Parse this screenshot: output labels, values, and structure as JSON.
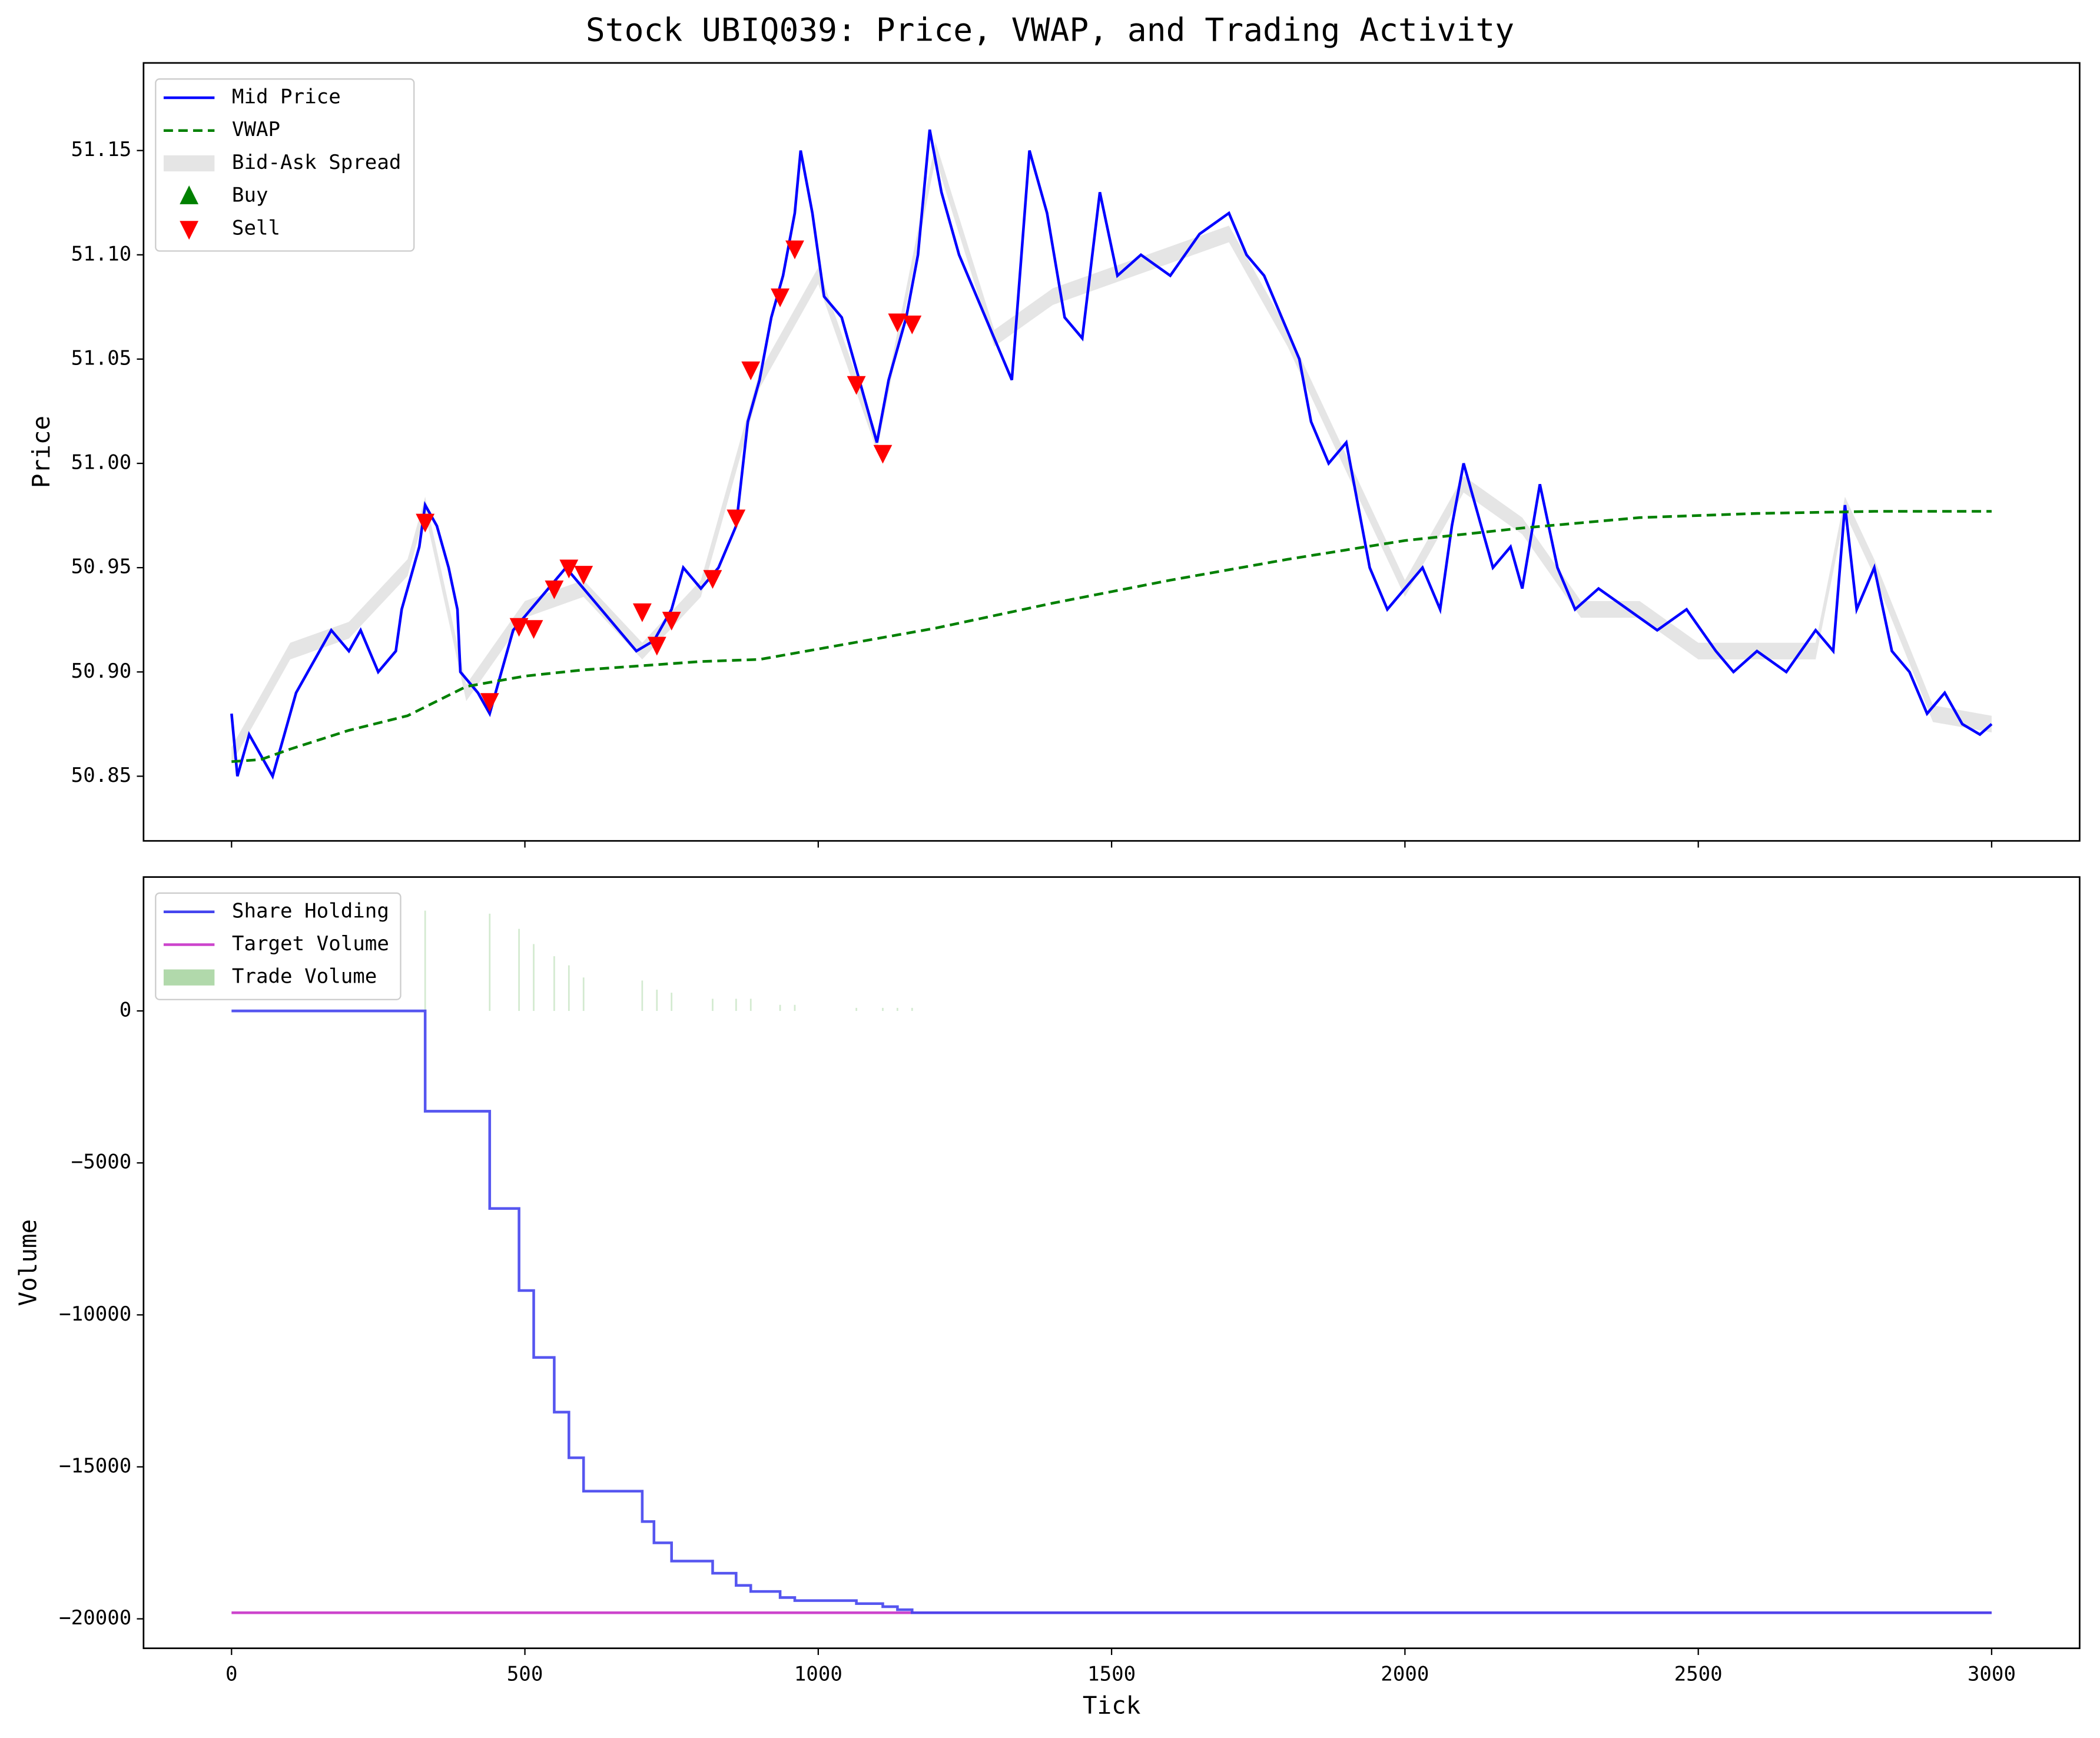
{
  "chart_data": [
    {
      "type": "line",
      "title": "Stock UBIQ039: Price, VWAP, and Trading Activity",
      "ylabel": "Price",
      "xlim": [
        -150,
        3150
      ],
      "xticks": [
        0,
        500,
        1000,
        1500,
        2000,
        2500,
        3000
      ],
      "ylim": [
        50.819,
        51.192
      ],
      "yticks": [
        50.85,
        {
          "value": 50.9,
          "label": "50.90"
        },
        50.95,
        {
          "value": 51.0,
          "label": "51.00"
        },
        51.05,
        {
          "value": 51.1,
          "label": "51.10"
        },
        51.15
      ],
      "legend": "upper left",
      "series": [
        {
          "name": "Mid Price",
          "style": "line",
          "color": "#0000ff",
          "x": [
            0,
            10,
            30,
            50,
            70,
            90,
            110,
            130,
            150,
            170,
            200,
            220,
            250,
            280,
            290,
            310,
            320,
            330,
            350,
            370,
            385,
            390,
            420,
            440,
            460,
            480,
            510,
            540,
            570,
            600,
            630,
            660,
            690,
            720,
            750,
            770,
            800,
            830,
            860,
            880,
            900,
            920,
            940,
            960,
            970,
            990,
            1010,
            1040,
            1070,
            1100,
            1120,
            1150,
            1170,
            1190,
            1210,
            1240,
            1270,
            1300,
            1330,
            1360,
            1390,
            1420,
            1450,
            1480,
            1510,
            1550,
            1600,
            1650,
            1700,
            1730,
            1760,
            1790,
            1820,
            1840,
            1870,
            1900,
            1920,
            1940,
            1970,
            2000,
            2030,
            2060,
            2080,
            2100,
            2120,
            2150,
            2180,
            2200,
            2230,
            2260,
            2290,
            2330,
            2380,
            2430,
            2480,
            2530,
            2560,
            2600,
            2650,
            2700,
            2730,
            2750,
            2770,
            2800,
            2830,
            2860,
            2890,
            2920,
            2950,
            2980,
            3000
          ],
          "values": [
            50.88,
            50.85,
            50.87,
            50.86,
            50.85,
            50.87,
            50.89,
            50.9,
            50.91,
            50.92,
            50.91,
            50.92,
            50.9,
            50.91,
            50.93,
            50.95,
            50.96,
            50.98,
            50.97,
            50.95,
            50.93,
            50.9,
            50.89,
            50.88,
            50.9,
            50.92,
            50.93,
            50.94,
            50.95,
            50.94,
            50.93,
            50.92,
            50.91,
            50.915,
            50.93,
            50.95,
            50.94,
            50.95,
            50.97,
            51.02,
            51.04,
            51.07,
            51.09,
            51.12,
            51.15,
            51.12,
            51.08,
            51.07,
            51.04,
            51.01,
            51.04,
            51.07,
            51.1,
            51.16,
            51.13,
            51.1,
            51.08,
            51.06,
            51.04,
            51.15,
            51.12,
            51.07,
            51.06,
            51.13,
            51.09,
            51.1,
            51.09,
            51.11,
            51.12,
            51.1,
            51.09,
            51.07,
            51.05,
            51.02,
            51.0,
            51.01,
            50.98,
            50.95,
            50.93,
            50.94,
            50.95,
            50.93,
            50.97,
            51.0,
            50.98,
            50.95,
            50.96,
            50.94,
            50.99,
            50.95,
            50.93,
            50.94,
            50.93,
            50.92,
            50.93,
            50.91,
            50.9,
            50.91,
            50.9,
            50.92,
            50.91,
            50.98,
            50.93,
            50.95,
            50.91,
            50.9,
            50.88,
            50.89,
            50.875,
            50.87,
            50.875
          ]
        },
        {
          "name": "VWAP",
          "style": "dashed",
          "color": "#008000",
          "x": [
            0,
            50,
            100,
            200,
            300,
            400,
            500,
            600,
            700,
            800,
            900,
            1000,
            1200,
            1400,
            1600,
            1800,
            2000,
            2200,
            2400,
            2600,
            2800,
            3000
          ],
          "values": [
            50.857,
            50.858,
            50.863,
            50.872,
            50.879,
            50.893,
            50.898,
            50.901,
            50.903,
            50.905,
            50.906,
            50.911,
            50.921,
            50.933,
            50.944,
            50.954,
            50.963,
            50.969,
            50.974,
            50.976,
            50.977,
            50.977
          ]
        },
        {
          "name": "Bid-Ask Spread",
          "style": "band",
          "color": "#d3d3d3",
          "x": [
            0,
            100,
            200,
            300,
            330,
            400,
            500,
            600,
            700,
            800,
            900,
            1000,
            1100,
            1200,
            1300,
            1400,
            1500,
            1600,
            1700,
            1800,
            1900,
            2000,
            2100,
            2200,
            2300,
            2400,
            2500,
            2600,
            2700,
            2750,
            2800,
            2900,
            3000
          ],
          "low": [
            50.856,
            50.906,
            50.916,
            50.946,
            50.976,
            50.886,
            50.926,
            50.936,
            50.906,
            50.936,
            51.036,
            51.086,
            51.006,
            51.146,
            51.056,
            51.076,
            51.086,
            51.096,
            51.106,
            51.056,
            50.996,
            50.936,
            50.986,
            50.966,
            50.926,
            50.926,
            50.906,
            50.906,
            50.906,
            50.976,
            50.946,
            50.876,
            50.871
          ],
          "high": [
            50.864,
            50.914,
            50.924,
            50.954,
            50.984,
            50.894,
            50.934,
            50.944,
            50.914,
            50.944,
            51.044,
            51.094,
            51.014,
            51.154,
            51.064,
            51.084,
            51.094,
            51.104,
            51.114,
            51.064,
            51.004,
            50.944,
            50.994,
            50.974,
            50.934,
            50.934,
            50.914,
            50.914,
            50.914,
            50.984,
            50.954,
            50.884,
            50.879
          ]
        },
        {
          "name": "Buy",
          "style": "marker-up",
          "color": "#008000",
          "x": [],
          "values": []
        },
        {
          "name": "Sell",
          "style": "marker-down",
          "color": "#ff0000",
          "x": [
            330,
            440,
            490,
            515,
            550,
            575,
            600,
            700,
            725,
            750,
            820,
            860,
            885,
            935,
            960,
            1065,
            1110,
            1135,
            1160
          ],
          "values": [
            50.972,
            50.886,
            50.922,
            50.921,
            50.94,
            50.95,
            50.947,
            50.929,
            50.913,
            50.925,
            50.945,
            50.974,
            51.045,
            51.08,
            51.103,
            51.038,
            51.005,
            51.068,
            51.067
          ]
        }
      ]
    },
    {
      "type": "line",
      "xlabel": "Tick",
      "ylabel": "Volume",
      "xlim": [
        -150,
        3150
      ],
      "xticks": [
        0,
        500,
        1000,
        1500,
        2000,
        2500,
        3000
      ],
      "ylim": [
        -20969,
        4405
      ],
      "yticks": [
        {
          "value": -20000,
          "label": "−20000"
        },
        {
          "value": -15000,
          "label": "−15000"
        },
        {
          "value": -10000,
          "label": "−10000"
        },
        {
          "value": -5000,
          "label": "−5000"
        },
        0
      ],
      "legend": "upper left",
      "series": [
        {
          "name": "Share Holding",
          "style": "step",
          "color": "#4444ee",
          "x": [
            0,
            330,
            440,
            490,
            515,
            550,
            575,
            600,
            700,
            720,
            750,
            820,
            860,
            885,
            935,
            960,
            1065,
            1110,
            1135,
            1160,
            3000
          ],
          "values": [
            0,
            -3300,
            -6500,
            -9200,
            -11400,
            -13200,
            -14700,
            -15800,
            -16800,
            -17500,
            -18100,
            -18500,
            -18900,
            -19100,
            -19300,
            -19400,
            -19500,
            -19600,
            -19700,
            -19800,
            -19800
          ]
        },
        {
          "name": "Target Volume",
          "style": "line",
          "color": "#cc44cc",
          "x": [
            0,
            3000
          ],
          "values": [
            -19800,
            -19800
          ]
        },
        {
          "name": "Trade Volume",
          "style": "bars",
          "color": "#a8d5a2",
          "x": [
            330,
            440,
            490,
            515,
            550,
            575,
            600,
            700,
            725,
            750,
            820,
            860,
            885,
            935,
            960,
            1065,
            1110,
            1135,
            1160
          ],
          "values": [
            3300,
            3200,
            2700,
            2200,
            1800,
            1500,
            1100,
            1000,
            700,
            600,
            400,
            400,
            400,
            200,
            200,
            100,
            100,
            100,
            100
          ]
        }
      ]
    }
  ]
}
